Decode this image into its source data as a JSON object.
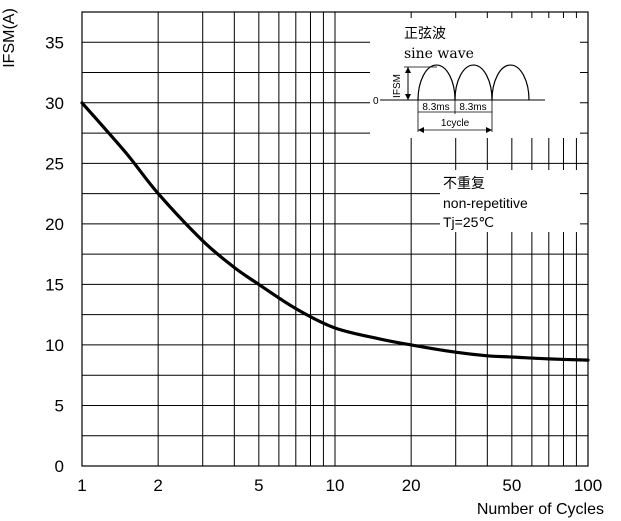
{
  "chart_data": {
    "type": "line",
    "title": "",
    "xlabel": "Number of Cycles",
    "ylabel": "IFSM(A)",
    "xscale": "log",
    "xlim": [
      1,
      100
    ],
    "ylim": [
      0,
      37.5
    ],
    "x_ticks": [
      1,
      2,
      5,
      10,
      20,
      50,
      100
    ],
    "y_ticks": [
      0,
      5,
      10,
      15,
      20,
      25,
      30,
      35
    ],
    "grid": true,
    "series": [
      {
        "x": [
          1,
          1.5,
          2,
          3,
          4,
          5,
          7,
          10,
          15,
          20,
          30,
          40,
          50,
          70,
          100
        ],
        "y": [
          30,
          25.8,
          22.5,
          18.6,
          16.4,
          15.0,
          13.0,
          11.4,
          10.5,
          10.0,
          9.4,
          9.1,
          9.0,
          8.85,
          8.75
        ]
      }
    ],
    "annotations": {
      "inset_title_cn": "正弦波",
      "inset_title_en": "sine wave",
      "inset_ifsm": "IFSM",
      "inset_zero": "0",
      "inset_period_a": "8.3ms",
      "inset_period_b": "8.3ms",
      "inset_cycle": "1cycle",
      "note_cn": "不重复",
      "note_en": "non-repetitive",
      "note_tj": "Tj=25℃"
    }
  }
}
